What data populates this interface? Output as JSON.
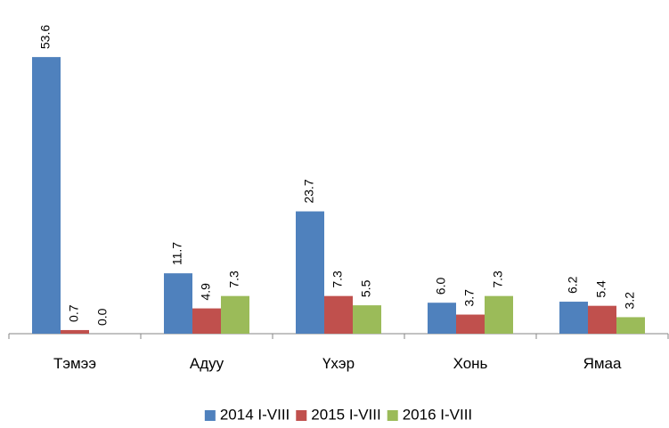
{
  "chart_data": {
    "type": "bar",
    "categories": [
      "Тэмээ",
      "Адуу",
      "Үхэр",
      "Хонь",
      "Ямаа"
    ],
    "series": [
      {
        "name": "2014 I-VIII",
        "color": "#4f81bd",
        "values": [
          53.6,
          11.7,
          23.7,
          6.0,
          6.2
        ],
        "value_labels": [
          "53.6",
          "11.7",
          "23.7",
          "6.0",
          "6.2"
        ]
      },
      {
        "name": "2015 I-VIII",
        "color": "#c0504d",
        "values": [
          0.7,
          4.9,
          7.3,
          3.7,
          5.4
        ],
        "value_labels": [
          "0.7",
          "4.9",
          "7.3",
          "3.7",
          "5.4"
        ]
      },
      {
        "name": "2016 I-VIII",
        "color": "#9bbb59",
        "values": [
          0.0,
          7.3,
          5.5,
          7.3,
          3.2
        ],
        "value_labels": [
          "0.0",
          "7.3",
          "5.5",
          "7.3",
          "3.2"
        ]
      }
    ],
    "legend": "bottom"
  }
}
